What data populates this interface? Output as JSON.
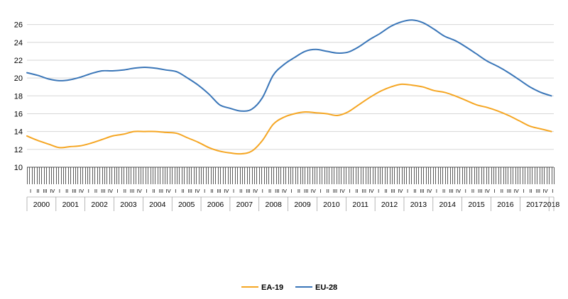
{
  "chart_data": {
    "type": "line",
    "title": "",
    "xlabel": "",
    "ylabel": "",
    "ylim": [
      10,
      27
    ],
    "yticks": [
      10,
      12,
      14,
      16,
      18,
      20,
      22,
      24,
      26
    ],
    "grid": "horizontal",
    "legend_position": "bottom",
    "x_start_year": 2000,
    "months": 218,
    "years": [
      "2000",
      "2001",
      "2002",
      "2003",
      "2004",
      "2005",
      "2006",
      "2007",
      "2008",
      "2009",
      "2010",
      "2011",
      "2012",
      "2013",
      "2014",
      "2015",
      "2016",
      "2017",
      "2018"
    ],
    "quarter_labels": [
      "I",
      "II",
      "III",
      "IV"
    ],
    "series": [
      {
        "name": "EA-19",
        "color": "#f5a623",
        "points": [
          [
            0,
            13.5
          ],
          [
            6,
            13.0
          ],
          [
            12,
            12.6
          ],
          [
            18,
            12.2
          ],
          [
            24,
            12.3
          ],
          [
            30,
            12.4
          ],
          [
            36,
            12.7
          ],
          [
            42,
            13.1
          ],
          [
            48,
            13.5
          ],
          [
            54,
            13.7
          ],
          [
            60,
            14.0
          ],
          [
            66,
            14.0
          ],
          [
            72,
            14.0
          ],
          [
            78,
            13.9
          ],
          [
            84,
            13.8
          ],
          [
            90,
            13.3
          ],
          [
            96,
            12.8
          ],
          [
            102,
            12.2
          ],
          [
            108,
            11.8
          ],
          [
            114,
            11.6
          ],
          [
            120,
            11.5
          ],
          [
            126,
            11.8
          ],
          [
            132,
            13.0
          ],
          [
            138,
            14.8
          ],
          [
            144,
            15.6
          ],
          [
            150,
            16.0
          ],
          [
            156,
            16.2
          ],
          [
            162,
            16.1
          ],
          [
            168,
            16.0
          ],
          [
            174,
            15.8
          ],
          [
            180,
            16.2
          ],
          [
            186,
            17.0
          ],
          [
            192,
            17.8
          ],
          [
            198,
            18.5
          ],
          [
            204,
            19.0
          ],
          [
            210,
            19.3
          ],
          [
            216,
            19.2
          ],
          [
            222,
            19.0
          ],
          [
            228,
            18.6
          ],
          [
            234,
            18.4
          ],
          [
            240,
            18.0
          ],
          [
            246,
            17.5
          ],
          [
            252,
            17.0
          ],
          [
            258,
            16.7
          ],
          [
            264,
            16.3
          ],
          [
            270,
            15.8
          ],
          [
            276,
            15.2
          ],
          [
            282,
            14.6
          ],
          [
            288,
            14.3
          ],
          [
            294,
            14.0
          ]
        ]
      },
      {
        "name": "EU-28",
        "color": "#3a76b8",
        "points": [
          [
            0,
            20.6
          ],
          [
            6,
            20.3
          ],
          [
            12,
            19.9
          ],
          [
            18,
            19.7
          ],
          [
            24,
            19.8
          ],
          [
            30,
            20.1
          ],
          [
            36,
            20.5
          ],
          [
            42,
            20.8
          ],
          [
            48,
            20.8
          ],
          [
            54,
            20.9
          ],
          [
            60,
            21.1
          ],
          [
            66,
            21.2
          ],
          [
            72,
            21.1
          ],
          [
            78,
            20.9
          ],
          [
            84,
            20.7
          ],
          [
            90,
            20.0
          ],
          [
            96,
            19.2
          ],
          [
            102,
            18.2
          ],
          [
            108,
            17.0
          ],
          [
            114,
            16.6
          ],
          [
            120,
            16.3
          ],
          [
            126,
            16.5
          ],
          [
            132,
            17.8
          ],
          [
            138,
            20.3
          ],
          [
            144,
            21.5
          ],
          [
            150,
            22.3
          ],
          [
            156,
            23.0
          ],
          [
            162,
            23.2
          ],
          [
            168,
            23.0
          ],
          [
            174,
            22.8
          ],
          [
            180,
            22.9
          ],
          [
            186,
            23.5
          ],
          [
            192,
            24.3
          ],
          [
            198,
            25.0
          ],
          [
            204,
            25.8
          ],
          [
            210,
            26.3
          ],
          [
            216,
            26.5
          ],
          [
            222,
            26.2
          ],
          [
            228,
            25.5
          ],
          [
            234,
            24.7
          ],
          [
            240,
            24.2
          ],
          [
            246,
            23.5
          ],
          [
            252,
            22.7
          ],
          [
            258,
            21.9
          ],
          [
            264,
            21.3
          ],
          [
            270,
            20.6
          ],
          [
            276,
            19.8
          ],
          [
            282,
            19.0
          ],
          [
            288,
            18.4
          ],
          [
            294,
            18.0
          ]
        ]
      }
    ]
  }
}
